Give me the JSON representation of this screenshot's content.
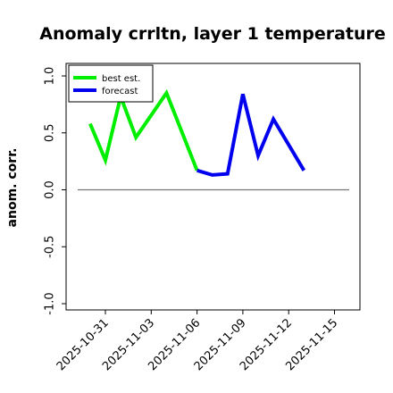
{
  "chart_data": {
    "type": "line",
    "title": "Anomaly crrltn, layer 1 temperature",
    "ylabel": "anom. corr.",
    "ylim": [
      -1.0,
      1.0
    ],
    "y_ticks": [
      "-1.0",
      "-0.5",
      "0.0",
      "0.5",
      "1.0"
    ],
    "x_ticks": [
      "2025-10-31",
      "2025-11-03",
      "2025-11-06",
      "2025-11-09",
      "2025-11-12",
      "2025-11-15"
    ],
    "highlighted_tick": "2025-11-06",
    "highlight_color": "#228b22",
    "reference_line_y": 0.0,
    "legend_position": "upper left",
    "series": [
      {
        "name": "best est.",
        "color": "#00ee00",
        "x": [
          "2025-10-30",
          "2025-10-31",
          "2025-11-01",
          "2025-11-01",
          "2025-11-02",
          "2025-11-04",
          "2025-11-06"
        ],
        "y": [
          0.58,
          0.26,
          0.82,
          0.82,
          0.46,
          0.85,
          0.17
        ]
      },
      {
        "name": "forecast",
        "color": "#0000ee",
        "x": [
          "2025-11-06",
          "2025-11-07",
          "2025-11-08",
          "2025-11-09",
          "2025-11-10",
          "2025-11-11",
          "2025-11-13"
        ],
        "y": [
          0.17,
          0.13,
          0.14,
          0.84,
          0.3,
          0.62,
          0.17
        ]
      }
    ]
  }
}
